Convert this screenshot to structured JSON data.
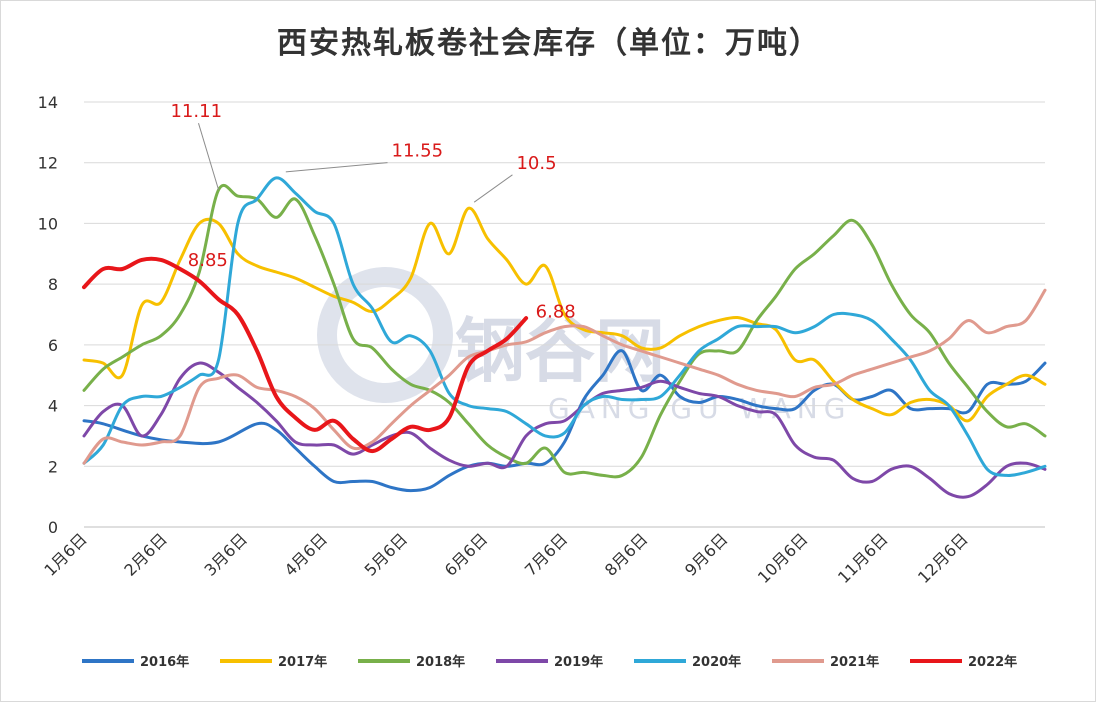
{
  "chart_data": {
    "type": "line",
    "title": "西安热轧板卷社会库存（单位：万吨）",
    "ylim": [
      0,
      14
    ],
    "yticks": [
      "0",
      "2",
      "4",
      "6",
      "8",
      "10",
      "12",
      "14"
    ],
    "x_ticks": [
      "1月6日",
      "2月6日",
      "3月6日",
      "4月6日",
      "5月6日",
      "6月6日",
      "7月6日",
      "8月6日",
      "9月6日",
      "10月6日",
      "11月6日",
      "12月6日"
    ],
    "x_range": [
      0,
      50
    ],
    "grid": true,
    "legend_position": "bottom",
    "series": [
      {
        "name": "2016年",
        "color": "#2e75c6",
        "x": [
          0,
          1,
          3,
          5,
          7,
          9,
          10,
          11,
          12,
          13,
          14,
          15,
          16,
          17,
          18,
          19,
          20,
          21,
          22,
          23,
          24,
          25,
          26,
          27,
          28,
          29,
          30,
          31,
          32,
          33,
          34,
          35,
          36,
          37,
          38,
          39,
          40,
          41,
          42,
          43,
          44,
          45,
          46,
          47,
          48,
          49,
          50
        ],
        "values": [
          3.5,
          3.4,
          3.0,
          2.8,
          2.8,
          3.4,
          3.2,
          2.6,
          2.0,
          1.5,
          1.5,
          1.5,
          1.3,
          1.2,
          1.3,
          1.7,
          2.0,
          2.1,
          2.0,
          2.1,
          2.1,
          2.8,
          4.2,
          5.0,
          5.8,
          4.5,
          5.0,
          4.3,
          4.1,
          4.3,
          4.2,
          4.0,
          3.9,
          3.9,
          4.5,
          4.7,
          4.2,
          4.3,
          4.5,
          3.9,
          3.9,
          3.9,
          3.8,
          4.7,
          4.7,
          4.8,
          5.4
        ]
      },
      {
        "name": "2017年",
        "color": "#f7c000",
        "x": [
          0,
          1,
          2,
          3,
          4,
          5,
          6,
          7,
          8,
          9,
          10,
          11,
          12,
          13,
          14,
          15,
          16,
          17,
          18,
          19,
          20,
          21,
          22,
          23,
          24,
          25,
          26,
          27,
          28,
          29,
          30,
          31,
          32,
          33,
          34,
          35,
          36,
          37,
          38,
          39,
          40,
          41,
          42,
          43,
          44,
          45,
          46,
          47,
          48,
          49,
          50
        ],
        "values": [
          5.5,
          5.4,
          5.0,
          7.3,
          7.4,
          8.8,
          10.0,
          10.0,
          9.0,
          8.6,
          8.4,
          8.2,
          7.9,
          7.6,
          7.4,
          7.1,
          7.5,
          8.2,
          10.0,
          9.0,
          10.5,
          9.5,
          8.8,
          8.0,
          8.6,
          7.0,
          6.5,
          6.4,
          6.3,
          5.9,
          5.9,
          6.3,
          6.6,
          6.8,
          6.9,
          6.7,
          6.5,
          5.5,
          5.5,
          4.8,
          4.2,
          3.9,
          3.7,
          4.1,
          4.2,
          4.0,
          3.5,
          4.3,
          4.7,
          5.0,
          4.7
        ]
      },
      {
        "name": "2018年",
        "color": "#78b04a",
        "x": [
          0,
          1,
          2,
          3,
          4,
          5,
          6,
          7,
          8,
          9,
          10,
          11,
          12,
          13,
          14,
          15,
          16,
          17,
          18,
          19,
          20,
          21,
          22,
          23,
          24,
          25,
          26,
          27,
          28,
          29,
          30,
          31,
          32,
          33,
          34,
          35,
          36,
          37,
          38,
          39,
          40,
          41,
          42,
          43,
          44,
          45,
          46,
          47,
          48,
          49,
          50
        ],
        "values": [
          4.5,
          5.2,
          5.6,
          6.0,
          6.3,
          7.0,
          8.4,
          11.1,
          10.9,
          10.8,
          10.2,
          10.8,
          9.6,
          8.0,
          6.2,
          5.9,
          5.2,
          4.7,
          4.5,
          4.1,
          3.4,
          2.7,
          2.3,
          2.1,
          2.6,
          1.8,
          1.8,
          1.7,
          1.7,
          2.3,
          3.7,
          4.8,
          5.7,
          5.8,
          5.8,
          6.8,
          7.6,
          8.5,
          9.0,
          9.6,
          10.1,
          9.3,
          8.0,
          7.0,
          6.4,
          5.4,
          4.6,
          3.8,
          3.3,
          3.4,
          3.0
        ]
      },
      {
        "name": "2019年",
        "color": "#7e48a8",
        "x": [
          0,
          1,
          2,
          3,
          4,
          5,
          6,
          7,
          8,
          9,
          10,
          11,
          12,
          13,
          14,
          15,
          16,
          17,
          18,
          19,
          20,
          21,
          22,
          23,
          24,
          25,
          26,
          27,
          28,
          29,
          30,
          31,
          32,
          33,
          34,
          35,
          36,
          37,
          38,
          39,
          40,
          41,
          42,
          43,
          44,
          45,
          46,
          47,
          48,
          49,
          50
        ],
        "values": [
          3.0,
          3.8,
          4.0,
          3.0,
          3.7,
          4.9,
          5.4,
          5.1,
          4.6,
          4.1,
          3.5,
          2.8,
          2.7,
          2.7,
          2.4,
          2.7,
          3.0,
          3.1,
          2.6,
          2.2,
          2.0,
          2.1,
          2.0,
          3.0,
          3.4,
          3.5,
          4.0,
          4.4,
          4.5,
          4.6,
          4.8,
          4.6,
          4.4,
          4.3,
          4.0,
          3.8,
          3.7,
          2.7,
          2.3,
          2.2,
          1.6,
          1.5,
          1.9,
          2.0,
          1.6,
          1.1,
          1.0,
          1.4,
          2.0,
          2.1,
          1.9
        ]
      },
      {
        "name": "2020年",
        "color": "#2fa8d8",
        "x": [
          0,
          1,
          2,
          3,
          4,
          5,
          6,
          7,
          8,
          9,
          10,
          11,
          12,
          13,
          14,
          15,
          16,
          17,
          18,
          19,
          20,
          21,
          22,
          23,
          24,
          25,
          26,
          27,
          28,
          29,
          30,
          31,
          32,
          33,
          34,
          35,
          36,
          37,
          38,
          39,
          40,
          41,
          42,
          43,
          44,
          45,
          46,
          47,
          48,
          49,
          50
        ],
        "values": [
          2.1,
          2.7,
          4.0,
          4.3,
          4.3,
          4.6,
          5.0,
          5.5,
          10.0,
          10.8,
          11.5,
          11.0,
          10.4,
          10.0,
          8.0,
          7.2,
          6.1,
          6.3,
          5.8,
          4.4,
          4.0,
          3.9,
          3.8,
          3.4,
          3.0,
          3.1,
          4.0,
          4.3,
          4.2,
          4.2,
          4.3,
          5.0,
          5.8,
          6.2,
          6.6,
          6.6,
          6.6,
          6.4,
          6.6,
          7.0,
          7.0,
          6.8,
          6.2,
          5.5,
          4.5,
          4.0,
          3.0,
          1.9,
          1.7,
          1.8,
          2.0
        ]
      },
      {
        "name": "2021年",
        "color": "#e09a8e",
        "x": [
          0,
          1,
          2,
          3,
          4,
          5,
          6,
          7,
          8,
          9,
          10,
          11,
          12,
          13,
          14,
          15,
          16,
          17,
          18,
          19,
          20,
          21,
          22,
          23,
          24,
          25,
          26,
          27,
          28,
          29,
          30,
          31,
          32,
          33,
          34,
          35,
          36,
          37,
          38,
          39,
          40,
          41,
          42,
          43,
          44,
          45,
          46,
          47,
          48,
          49,
          50
        ],
        "values": [
          2.1,
          2.9,
          2.8,
          2.7,
          2.8,
          3.0,
          4.6,
          4.9,
          5.0,
          4.6,
          4.5,
          4.3,
          3.9,
          3.2,
          2.6,
          2.8,
          3.4,
          4.0,
          4.5,
          5.0,
          5.6,
          5.8,
          6.0,
          6.1,
          6.4,
          6.6,
          6.6,
          6.3,
          6.0,
          5.8,
          5.6,
          5.4,
          5.2,
          5.0,
          4.7,
          4.5,
          4.4,
          4.3,
          4.6,
          4.7,
          5.0,
          5.2,
          5.4,
          5.6,
          5.8,
          6.2,
          6.8,
          6.4,
          6.6,
          6.8,
          7.8
        ]
      },
      {
        "name": "2022年",
        "color": "#e8161a",
        "x": [
          0,
          1,
          2,
          3,
          4,
          5,
          6,
          7,
          8,
          9,
          10,
          11,
          12,
          13,
          14,
          15,
          16,
          17,
          18,
          19,
          20,
          21,
          22,
          23
        ],
        "values": [
          7.9,
          8.5,
          8.5,
          8.8,
          8.8,
          8.5,
          8.1,
          7.5,
          7.0,
          5.8,
          4.3,
          3.6,
          3.2,
          3.5,
          2.9,
          2.5,
          2.9,
          3.3,
          3.2,
          3.6,
          5.3,
          5.8,
          6.2,
          6.88
        ]
      }
    ],
    "annotations": [
      {
        "text": "11.11",
        "series": "2018年",
        "at_x": 7,
        "at_y": 11.11,
        "tx": 4.5,
        "ty": 13.5
      },
      {
        "text": "11.55",
        "series": "2020年",
        "at_x": 10.5,
        "at_y": 11.7,
        "tx": 16,
        "ty": 12.2
      },
      {
        "text": "10.5",
        "series": "2017年",
        "at_x": 20.3,
        "at_y": 10.7,
        "tx": 22.5,
        "ty": 11.8
      },
      {
        "text": "8.85",
        "series": "2022年",
        "at_x": 5,
        "at_y": 8.85,
        "tx": 5.4,
        "ty": 8.6
      },
      {
        "text": "6.88",
        "series": "2022年",
        "at_x": 23,
        "at_y": 6.88,
        "tx": 23.5,
        "ty": 6.9
      }
    ]
  },
  "watermark": {
    "cn": "钢谷网",
    "en": "GANG GU WANG"
  }
}
